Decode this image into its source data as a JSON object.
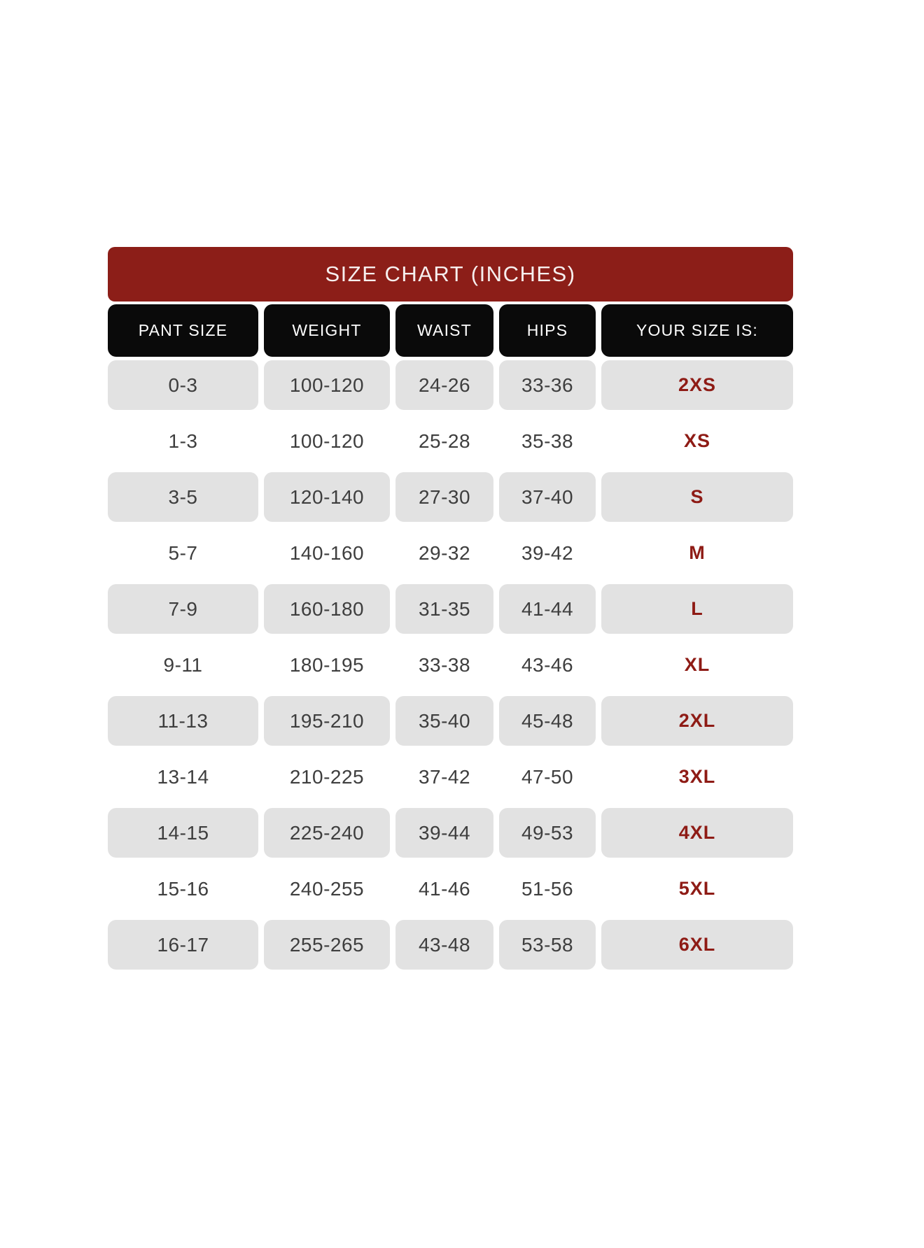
{
  "banner": {
    "title": "SIZE CHART (INCHES)"
  },
  "table": {
    "columns": [
      "PANT SIZE",
      "WEIGHT",
      "WAIST",
      "HIPS",
      "YOUR SIZE IS:"
    ],
    "rows": [
      [
        "0-3",
        "100-120",
        "24-26",
        "33-36",
        "2XS"
      ],
      [
        "1-3",
        "100-120",
        "25-28",
        "35-38",
        "XS"
      ],
      [
        "3-5",
        "120-140",
        "27-30",
        "37-40",
        "S"
      ],
      [
        "5-7",
        "140-160",
        "29-32",
        "39-42",
        "M"
      ],
      [
        "7-9",
        "160-180",
        "31-35",
        "41-44",
        "L"
      ],
      [
        "9-11",
        "180-195",
        "33-38",
        "43-46",
        "XL"
      ],
      [
        "11-13",
        "195-210",
        "35-40",
        "45-48",
        "2XL"
      ],
      [
        "13-14",
        "210-225",
        "37-42",
        "47-50",
        "3XL"
      ],
      [
        "14-15",
        "225-240",
        "39-44",
        "49-53",
        "4XL"
      ],
      [
        "15-16",
        "240-255",
        "41-46",
        "51-56",
        "5XL"
      ],
      [
        "16-17",
        "255-265",
        "43-48",
        "53-58",
        "6XL"
      ]
    ]
  },
  "colors": {
    "banner_bg": "#8C1E18",
    "banner_text": "#F6EFEE",
    "header_bg": "#0A0A0A",
    "header_text": "#FFFFFF",
    "shaded_cell_bg": "#E2E2E2",
    "data_text": "#3E3E3E",
    "size_text": "#8E1B15"
  },
  "chart_data": {
    "type": "table",
    "title": "SIZE CHART (INCHES)",
    "columns": [
      "PANT SIZE",
      "WEIGHT",
      "WAIST",
      "HIPS",
      "YOUR SIZE IS:"
    ],
    "rows": [
      [
        "0-3",
        "100-120",
        "24-26",
        "33-36",
        "2XS"
      ],
      [
        "1-3",
        "100-120",
        "25-28",
        "35-38",
        "XS"
      ],
      [
        "3-5",
        "120-140",
        "27-30",
        "37-40",
        "S"
      ],
      [
        "5-7",
        "140-160",
        "29-32",
        "39-42",
        "M"
      ],
      [
        "7-9",
        "160-180",
        "31-35",
        "41-44",
        "L"
      ],
      [
        "9-11",
        "180-195",
        "33-38",
        "43-46",
        "XL"
      ],
      [
        "11-13",
        "195-210",
        "35-40",
        "45-48",
        "2XL"
      ],
      [
        "13-14",
        "210-225",
        "37-42",
        "47-50",
        "3XL"
      ],
      [
        "14-15",
        "225-240",
        "39-44",
        "49-53",
        "4XL"
      ],
      [
        "15-16",
        "240-255",
        "41-46",
        "51-56",
        "5XL"
      ],
      [
        "16-17",
        "255-265",
        "43-48",
        "53-58",
        "6XL"
      ]
    ],
    "layout_hints": {
      "shaded_row_indices": [
        0,
        2,
        4,
        6,
        8,
        10
      ],
      "units": "inches (waist/hips), pounds (weight)"
    }
  }
}
